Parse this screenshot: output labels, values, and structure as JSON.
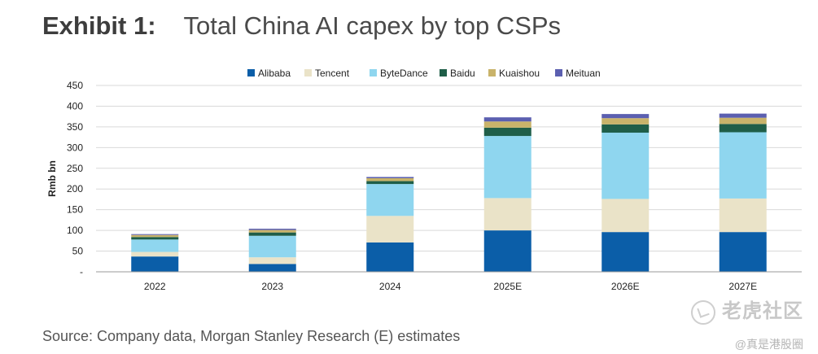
{
  "header": {
    "exhibit_label": "Exhibit 1:",
    "title": "Total China AI capex by top CSPs"
  },
  "footer": {
    "source": "Source: Company data, Morgan Stanley Research (E) estimates"
  },
  "watermark": {
    "main": "老虎社区",
    "sub": "@真是港股圈"
  },
  "chart_data": {
    "type": "bar",
    "stacked": true,
    "title": "Total China AI capex by top CSPs",
    "xlabel": "",
    "ylabel": "Rmb bn",
    "ylim": [
      0,
      450
    ],
    "yticks": [
      0,
      50,
      100,
      150,
      200,
      250,
      300,
      350,
      400,
      450
    ],
    "ytick_labels": [
      "-",
      "50",
      "100",
      "150",
      "200",
      "250",
      "300",
      "350",
      "400",
      "450"
    ],
    "grid": true,
    "legend_position": "top",
    "categories": [
      "2022",
      "2023",
      "2024",
      "2025E",
      "2026E",
      "2027E"
    ],
    "series": [
      {
        "name": "Alibaba",
        "color": "#0b5ea8",
        "values": [
          37,
          19,
          71,
          100,
          96,
          96
        ]
      },
      {
        "name": "Tencent",
        "color": "#eae3c8",
        "values": [
          11,
          16,
          64,
          78,
          80,
          81
        ]
      },
      {
        "name": "ByteDance",
        "color": "#8fd6ef",
        "values": [
          30,
          52,
          77,
          150,
          160,
          160
        ]
      },
      {
        "name": "Baidu",
        "color": "#1f5e48",
        "values": [
          6,
          8,
          7,
          20,
          20,
          20
        ]
      },
      {
        "name": "Kuaishou",
        "color": "#c9b36a",
        "values": [
          5,
          6,
          7,
          15,
          15,
          15
        ]
      },
      {
        "name": "Meituan",
        "color": "#5b5fb0",
        "values": [
          2,
          3,
          3,
          10,
          10,
          10
        ]
      }
    ]
  }
}
